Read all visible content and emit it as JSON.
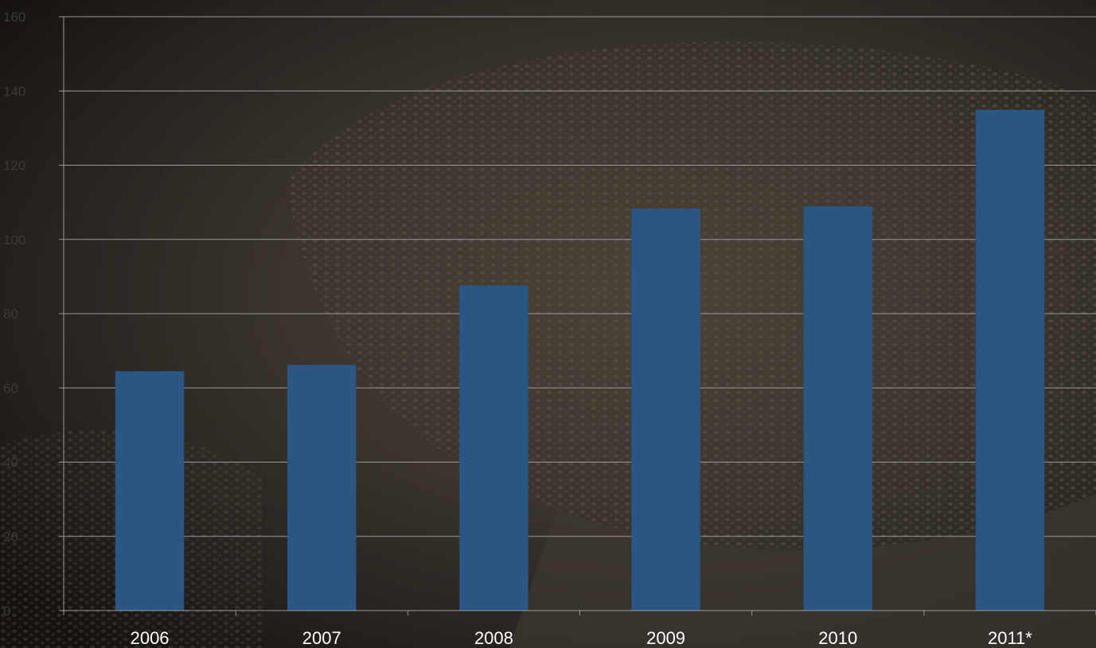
{
  "colors": {
    "bar": "#2b5583",
    "grid": "#9a9a9a",
    "tick_label_y": "#3a3a3a",
    "tick_label_x": "#ffffff"
  },
  "chart_data": {
    "type": "bar",
    "categories": [
      "2006",
      "2007",
      "2008",
      "2009",
      "2010",
      "2011*"
    ],
    "values": [
      64.5,
      66.2,
      87.6,
      108.3,
      108.9,
      134.9
    ],
    "ylim": [
      0,
      160
    ],
    "yticks": [
      0,
      20,
      40,
      60,
      80,
      100,
      120,
      140,
      160
    ],
    "ytick_labels": [
      "0",
      "20",
      "40",
      "60",
      "80",
      "100",
      "120",
      "140",
      "160"
    ],
    "grid": true,
    "legend": "none"
  }
}
